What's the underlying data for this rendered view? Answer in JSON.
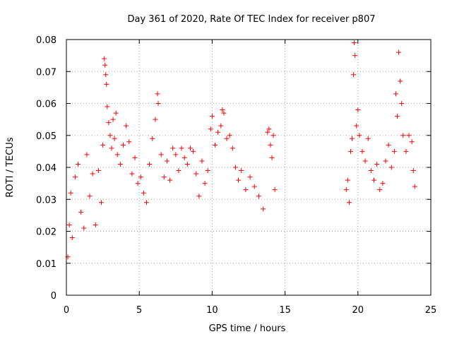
{
  "chart_data": {
    "type": "scatter",
    "title": "Day 361 of 2020, Rate Of TEC Index for receiver p807",
    "xlabel": "GPS time / hours",
    "ylabel": "ROTI / TECUs",
    "xlim": [
      0,
      25
    ],
    "ylim": [
      0,
      0.08
    ],
    "xticks": [
      0,
      5,
      10,
      15,
      20,
      25
    ],
    "xtick_labels": [
      "0",
      "5",
      "10",
      "15",
      "20",
      "25"
    ],
    "yticks": [
      0,
      0.01,
      0.02,
      0.03,
      0.04,
      0.05,
      0.06,
      0.07,
      0.08
    ],
    "ytick_labels": [
      "0",
      "0.01",
      "0.02",
      "0.03",
      "0.04",
      "0.05",
      "0.06",
      "0.07",
      "0.08"
    ],
    "grid": true,
    "marker": "+",
    "color": "#ff0000",
    "series": [
      {
        "name": "ROTI",
        "points": [
          [
            0.1,
            0.012
          ],
          [
            0.2,
            0.022
          ],
          [
            0.3,
            0.032
          ],
          [
            0.4,
            0.018
          ],
          [
            0.6,
            0.037
          ],
          [
            0.8,
            0.041
          ],
          [
            1.0,
            0.026
          ],
          [
            1.2,
            0.021
          ],
          [
            1.4,
            0.044
          ],
          [
            1.6,
            0.031
          ],
          [
            1.8,
            0.038
          ],
          [
            2.0,
            0.022
          ],
          [
            2.2,
            0.039
          ],
          [
            2.4,
            0.029
          ],
          [
            2.5,
            0.047
          ],
          [
            2.6,
            0.074
          ],
          [
            2.65,
            0.072
          ],
          [
            2.7,
            0.069
          ],
          [
            2.75,
            0.066
          ],
          [
            2.8,
            0.059
          ],
          [
            2.9,
            0.054
          ],
          [
            3.0,
            0.05
          ],
          [
            3.1,
            0.046
          ],
          [
            3.2,
            0.055
          ],
          [
            3.3,
            0.049
          ],
          [
            3.4,
            0.057
          ],
          [
            3.5,
            0.044
          ],
          [
            3.7,
            0.041
          ],
          [
            3.9,
            0.047
          ],
          [
            4.1,
            0.053
          ],
          [
            4.3,
            0.048
          ],
          [
            4.5,
            0.038
          ],
          [
            4.7,
            0.043
          ],
          [
            4.9,
            0.035
          ],
          [
            5.1,
            0.037
          ],
          [
            5.3,
            0.032
          ],
          [
            5.5,
            0.029
          ],
          [
            5.7,
            0.041
          ],
          [
            5.9,
            0.049
          ],
          [
            6.1,
            0.055
          ],
          [
            6.25,
            0.063
          ],
          [
            6.3,
            0.06
          ],
          [
            6.5,
            0.044
          ],
          [
            6.7,
            0.037
          ],
          [
            6.9,
            0.042
          ],
          [
            7.1,
            0.036
          ],
          [
            7.3,
            0.046
          ],
          [
            7.5,
            0.044
          ],
          [
            7.7,
            0.039
          ],
          [
            7.9,
            0.046
          ],
          [
            8.1,
            0.043
          ],
          [
            8.3,
            0.041
          ],
          [
            8.5,
            0.046
          ],
          [
            8.7,
            0.045
          ],
          [
            8.9,
            0.038
          ],
          [
            9.1,
            0.031
          ],
          [
            9.3,
            0.042
          ],
          [
            9.5,
            0.035
          ],
          [
            9.7,
            0.039
          ],
          [
            9.9,
            0.052
          ],
          [
            10.0,
            0.056
          ],
          [
            10.2,
            0.047
          ],
          [
            10.4,
            0.051
          ],
          [
            10.6,
            0.053
          ],
          [
            10.7,
            0.058
          ],
          [
            10.8,
            0.057
          ],
          [
            11.0,
            0.049
          ],
          [
            11.2,
            0.05
          ],
          [
            11.4,
            0.046
          ],
          [
            11.6,
            0.04
          ],
          [
            11.8,
            0.036
          ],
          [
            12.0,
            0.039
          ],
          [
            12.3,
            0.033
          ],
          [
            12.6,
            0.037
          ],
          [
            12.9,
            0.034
          ],
          [
            13.2,
            0.031
          ],
          [
            13.5,
            0.027
          ],
          [
            13.8,
            0.051
          ],
          [
            13.9,
            0.052
          ],
          [
            14.0,
            0.047
          ],
          [
            14.1,
            0.043
          ],
          [
            14.2,
            0.05
          ],
          [
            14.3,
            0.033
          ],
          [
            19.2,
            0.033
          ],
          [
            19.3,
            0.036
          ],
          [
            19.4,
            0.029
          ],
          [
            19.5,
            0.045
          ],
          [
            19.6,
            0.049
          ],
          [
            19.7,
            0.069
          ],
          [
            19.75,
            0.079
          ],
          [
            19.8,
            0.075
          ],
          [
            19.9,
            0.053
          ],
          [
            20.0,
            0.058
          ],
          [
            20.1,
            0.05
          ],
          [
            20.3,
            0.045
          ],
          [
            20.5,
            0.042
          ],
          [
            20.7,
            0.049
          ],
          [
            20.9,
            0.039
          ],
          [
            21.1,
            0.036
          ],
          [
            21.3,
            0.041
          ],
          [
            21.5,
            0.033
          ],
          [
            21.7,
            0.035
          ],
          [
            21.9,
            0.042
          ],
          [
            22.1,
            0.047
          ],
          [
            22.3,
            0.04
          ],
          [
            22.5,
            0.045
          ],
          [
            22.6,
            0.063
          ],
          [
            22.7,
            0.056
          ],
          [
            22.8,
            0.076
          ],
          [
            22.9,
            0.067
          ],
          [
            23.0,
            0.06
          ],
          [
            23.1,
            0.05
          ],
          [
            23.3,
            0.045
          ],
          [
            23.5,
            0.05
          ],
          [
            23.7,
            0.048
          ],
          [
            23.8,
            0.039
          ],
          [
            23.9,
            0.034
          ]
        ]
      }
    ]
  }
}
